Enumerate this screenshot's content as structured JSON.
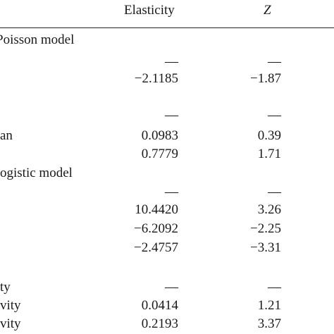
{
  "header": {
    "elasticity": "Elasticity",
    "z": "Z"
  },
  "rows": [
    {
      "label": "Poisson model",
      "elasticity": "",
      "z": ""
    },
    {
      "label": "",
      "elasticity": "—",
      "z": "—"
    },
    {
      "label": "",
      "elasticity": "−2.1185",
      "z": "−1.87"
    },
    {
      "label": "",
      "elasticity": "",
      "z": ""
    },
    {
      "label": "",
      "elasticity": "—",
      "z": "—"
    },
    {
      "label": "an",
      "elasticity": "0.0983",
      "z": "0.39"
    },
    {
      "label": "",
      "elasticity": "0.7779",
      "z": "1.71"
    },
    {
      "label": "ogistic model",
      "elasticity": "",
      "z": ""
    },
    {
      "label": "",
      "elasticity": "—",
      "z": "—"
    },
    {
      "label": "",
      "elasticity": "10.4420",
      "z": "3.26"
    },
    {
      "label": "",
      "elasticity": "−6.2092",
      "z": "−2.25"
    },
    {
      "label": "",
      "elasticity": "−2.4757",
      "z": "−3.31"
    },
    {
      "label": "",
      "elasticity": "",
      "z": ""
    },
    {
      "label": "ty",
      "elasticity": "—",
      "z": "—"
    },
    {
      "label": "vity",
      "elasticity": "0.0414",
      "z": "1.21"
    },
    {
      "label": "vity",
      "elasticity": "0.2193",
      "z": "3.37"
    }
  ]
}
